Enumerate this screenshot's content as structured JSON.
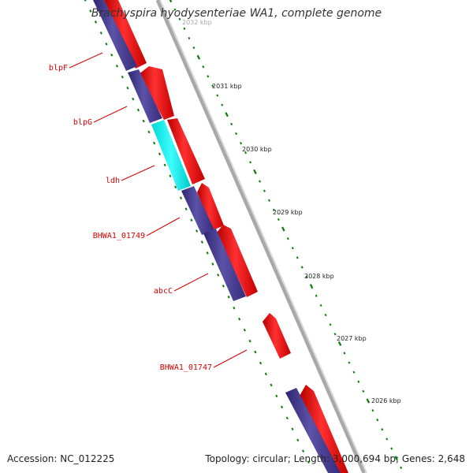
{
  "title": "Brachyspira hyodysenteriae WA1, complete genome",
  "footer": {
    "accession": "Accession: NC_012225",
    "summary": "Topology: circular; Length: 3,000,694 bp; Genes: 2,648"
  },
  "ruler_labels": [
    "2032 kbp",
    "2031 kbp",
    "2030 kbp",
    "2029 kbp",
    "2028 kbp",
    "2027 kbp",
    "2026 kbp"
  ],
  "gene_labels": [
    "blpF",
    "blpG",
    "ldh",
    "BHWA1_01749",
    "abcC",
    "BHWA1_01747"
  ],
  "colors": {
    "forward_gene": "#ff0000",
    "reverse_gene": "#473d8b",
    "highlight_gene": "#00ffff",
    "backbone": "#8c8c8c",
    "tick": "#0a7a0a",
    "label": "#d40000"
  }
}
